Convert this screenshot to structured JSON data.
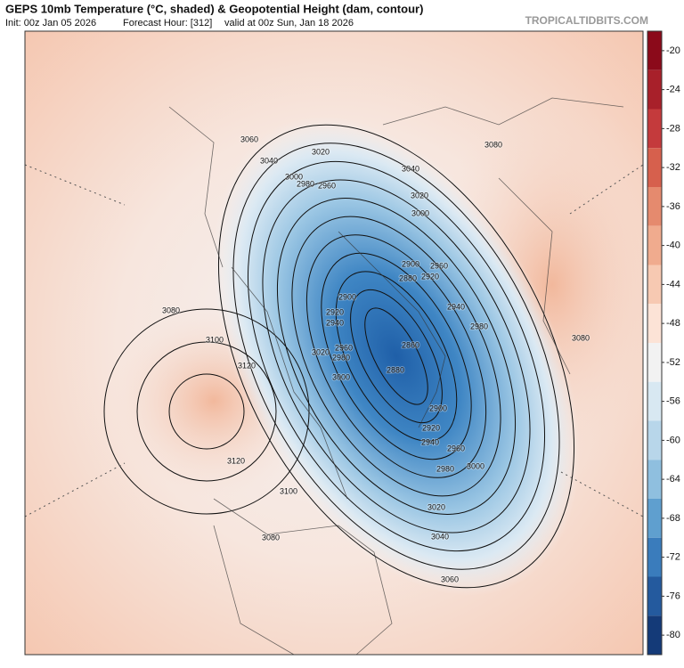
{
  "header": {
    "title": "GEPS 10mb Temperature (°C, shaded) & Geopotential Height (dam, contour)",
    "init": "Init: 00z Jan 05 2026",
    "forecast_hour": "Forecast Hour: [312]",
    "valid": "valid at 00z Sun, Jan 18 2026",
    "watermark": "TROPICALTIDBITS.COM"
  },
  "colorbar": {
    "range": [
      -18,
      -82
    ],
    "ticks": [
      -20,
      -24,
      -28,
      -32,
      -36,
      -40,
      -44,
      -48,
      -52,
      -56,
      -60,
      -64,
      -68,
      -72,
      -76,
      -80
    ],
    "colors": [
      "#8b0a1a",
      "#a8202a",
      "#c43a3c",
      "#d6604d",
      "#e58a6e",
      "#f0ab8e",
      "#f7c9b2",
      "#fce3d6",
      "#f2f2f2",
      "#d8e8f2",
      "#b8d6ea",
      "#8fbfdf",
      "#5f9fcf",
      "#3a7cbc",
      "#245a9e",
      "#143a78"
    ]
  },
  "contour_labels": [
    "3060",
    "3040",
    "3020",
    "3000",
    "2980",
    "2960",
    "3040",
    "3020",
    "3000",
    "2960",
    "2920",
    "2900",
    "2880",
    "2940",
    "2980",
    "3080",
    "3100",
    "3120",
    "3080",
    "3080",
    "2900",
    "2920",
    "2940",
    "3020",
    "2960",
    "2980",
    "3000",
    "2860",
    "2880",
    "2900",
    "2920",
    "2940",
    "2960",
    "2980",
    "3000",
    "3020",
    "3040",
    "3060",
    "3100",
    "3080",
    "3120"
  ]
}
